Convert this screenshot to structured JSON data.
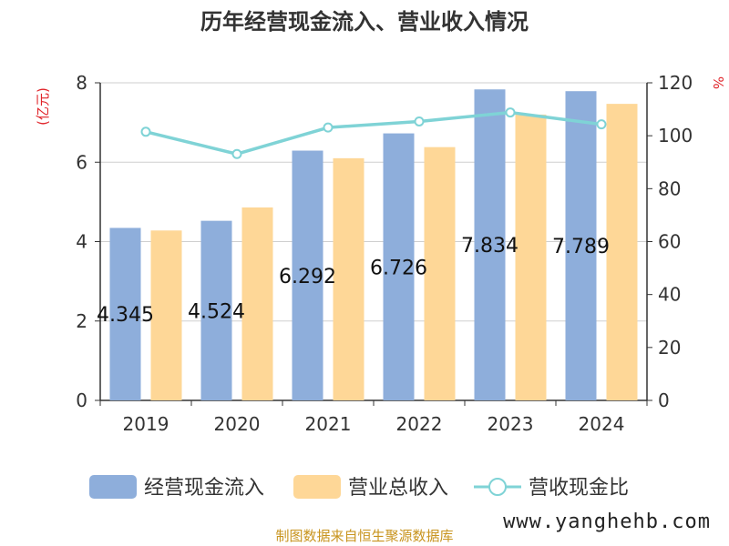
{
  "chart_data": {
    "type": "bar",
    "title": "历年经营现金流入、营业收入情况",
    "categories": [
      "2019",
      "2020",
      "2021",
      "2022",
      "2023",
      "2024"
    ],
    "y_left": {
      "unit": "(亿元)",
      "min": 0,
      "max": 8,
      "ticks": [
        "0",
        "2",
        "4",
        "6",
        "8"
      ]
    },
    "y_right": {
      "unit": "%",
      "min": 0,
      "max": 120,
      "ticks": [
        "0",
        "20",
        "40",
        "60",
        "80",
        "100",
        "120"
      ]
    },
    "series": [
      {
        "name": "经营现金流入",
        "kind": "bar",
        "axis": "left",
        "color": "#8eaedb",
        "values": [
          4.345,
          4.524,
          6.292,
          6.726,
          7.834,
          7.789
        ],
        "labels": [
          "4.345",
          "4.524",
          "6.292",
          "6.726",
          "7.834",
          "7.789"
        ]
      },
      {
        "name": "营业总收入",
        "kind": "bar",
        "axis": "left",
        "color": "#fed797",
        "values": [
          4.28,
          4.86,
          6.1,
          6.38,
          7.2,
          7.47
        ]
      },
      {
        "name": "营收现金比",
        "kind": "line",
        "axis": "right",
        "color": "#7fd3d6",
        "values": [
          101.5,
          93.1,
          103.1,
          105.4,
          108.8,
          104.3
        ]
      }
    ],
    "legend_position": "bottom",
    "grid": true
  },
  "source_text": "制图数据来自恒生聚源数据库",
  "watermark": "www.yanghehb.com"
}
